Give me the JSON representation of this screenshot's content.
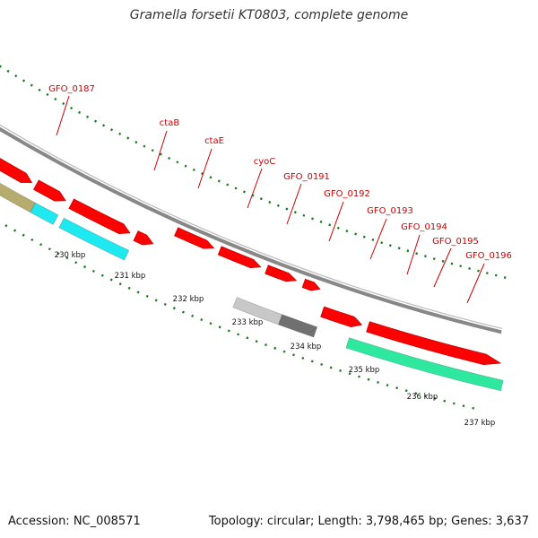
{
  "title": "Gramella forsetii KT0803, complete genome",
  "footer": {
    "accession": "Accession: NC_008571",
    "summary": "Topology: circular; Length: 3,798,465 bp; Genes: 3,637"
  },
  "colors": {
    "cds": "#ff0000",
    "label": "#cc0000",
    "backbone": "#888888",
    "ticks": "#1a7a1a",
    "feature_olive": "#b5ac6e",
    "feature_cyan": "#1ee8f0",
    "feature_lightgray": "#c8c8c8",
    "feature_darkgray": "#707070",
    "feature_green": "#2fe8a0"
  },
  "gene_labels": [
    {
      "id": "gfo-0187",
      "text": "GFO_0187"
    },
    {
      "id": "ctab",
      "text": "ctaB"
    },
    {
      "id": "ctae",
      "text": "ctaE"
    },
    {
      "id": "cyoc",
      "text": "cyoC"
    },
    {
      "id": "gfo-0191",
      "text": "GFO_0191"
    },
    {
      "id": "gfo-0192",
      "text": "GFO_0192"
    },
    {
      "id": "gfo-0193",
      "text": "GFO_0193"
    },
    {
      "id": "gfo-0194",
      "text": "GFO_0194"
    },
    {
      "id": "gfo-0195",
      "text": "GFO_0195"
    },
    {
      "id": "gfo-0196",
      "text": "GFO_0196"
    }
  ],
  "scale_labels": [
    "230 kbp",
    "231 kbp",
    "232 kbp",
    "233 kbp",
    "234 kbp",
    "235 kbp",
    "236 kbp",
    "237 kbp"
  ]
}
